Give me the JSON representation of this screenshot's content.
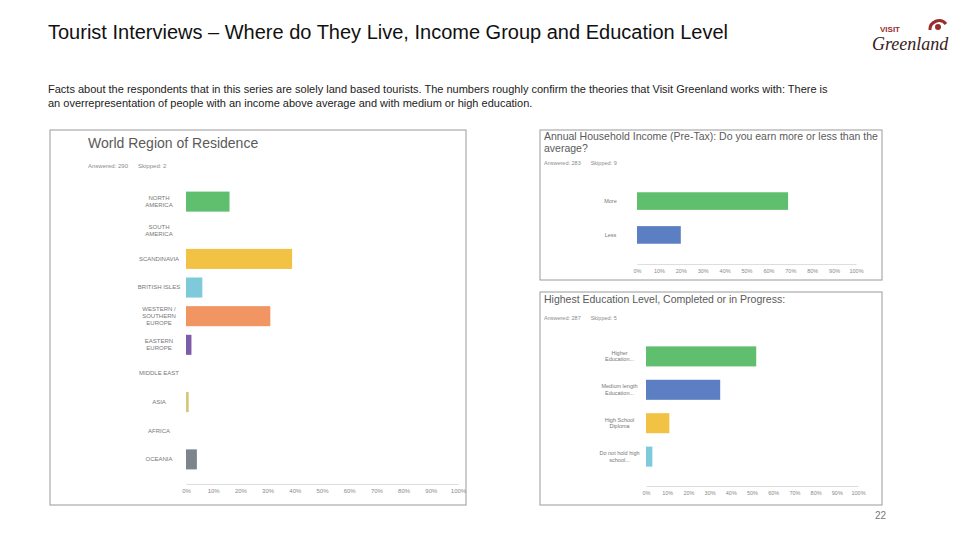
{
  "title": "Tourist Interviews – Where do They Live, Income Group and Education Level",
  "description": "Facts about the respondents that in this series are solely land based tourists. The numbers roughly confirm the theories that Visit Greenland works with: There is an overrepresentation of people with an income above average and with medium or high education.",
  "logo": {
    "top": "VISIT",
    "bottom": "Greenland"
  },
  "page_number": "22",
  "chart_data": [
    {
      "type": "bar",
      "orientation": "horizontal",
      "title": "World Region of Residence",
      "annotations": [
        "Answered: 290",
        "Skipped: 2"
      ],
      "categories": [
        "NORTH AMERICA",
        "SOUTH AMERICA",
        "SCANDINAVIA",
        "BRITISH ISLES",
        "WESTERN / SOUTHERN EUROPE",
        "EASTERN EUROPE",
        "MIDDLE EAST",
        "ASIA",
        "AFRICA",
        "OCEANIA"
      ],
      "values": [
        16,
        0,
        39,
        6,
        31,
        2,
        0,
        1,
        0,
        4
      ],
      "colors": [
        "#5fbf6f",
        "#e9655a",
        "#f2c244",
        "#7ecadb",
        "#f19563",
        "#7b5ea7",
        "#9aa0a6",
        "#d7c77a",
        "#b9a0d2",
        "#7e848b"
      ],
      "xlim": [
        0,
        100
      ],
      "xticks": [
        {
          "value": 0,
          "label": "0%"
        },
        {
          "value": 10,
          "label": "10%"
        },
        {
          "value": 20,
          "label": "20%"
        },
        {
          "value": 30,
          "label": "30%"
        },
        {
          "value": 40,
          "label": "40%"
        },
        {
          "value": 50,
          "label": "50%"
        },
        {
          "value": 60,
          "label": "60%"
        },
        {
          "value": 70,
          "label": "70%"
        },
        {
          "value": 80,
          "label": "80%"
        },
        {
          "value": 90,
          "label": "90%"
        },
        {
          "value": 100,
          "label": "100%"
        }
      ],
      "grid": false
    },
    {
      "type": "bar",
      "orientation": "horizontal",
      "title": "Annual Household Income (Pre-Tax): Do you earn more or less than the average?",
      "annotations": [
        "Answered: 283",
        "Skipped: 9"
      ],
      "categories": [
        "More",
        "Less"
      ],
      "values": [
        69,
        20
      ],
      "colors": [
        "#5fbf6f",
        "#5b7fc2"
      ],
      "xlim": [
        0,
        100
      ],
      "xticks": [
        {
          "value": 0,
          "label": "0%"
        },
        {
          "value": 10,
          "label": "10%"
        },
        {
          "value": 20,
          "label": "20%"
        },
        {
          "value": 30,
          "label": "30%"
        },
        {
          "value": 40,
          "label": "40%"
        },
        {
          "value": 50,
          "label": "50%"
        },
        {
          "value": 60,
          "label": "60%"
        },
        {
          "value": 70,
          "label": "70%"
        },
        {
          "value": 80,
          "label": "80%"
        },
        {
          "value": 90,
          "label": "90%"
        },
        {
          "value": 100,
          "label": "100%"
        }
      ],
      "grid": false
    },
    {
      "type": "bar",
      "orientation": "horizontal",
      "title": "Highest Education Level, Completed or in Progress:",
      "annotations": [
        "Answered: 287",
        "Skipped: 5"
      ],
      "categories": [
        "Higher Education...",
        "Medium length Education...",
        "High School Diploma",
        "Do not hold high school..."
      ],
      "values": [
        52,
        35,
        11,
        3
      ],
      "colors": [
        "#5fbf6f",
        "#5b7fc2",
        "#f2c244",
        "#7ecadb"
      ],
      "xlim": [
        0,
        100
      ],
      "xticks": [
        {
          "value": 0,
          "label": "0%"
        },
        {
          "value": 10,
          "label": "10%"
        },
        {
          "value": 20,
          "label": "20%"
        },
        {
          "value": 30,
          "label": "30%"
        },
        {
          "value": 40,
          "label": "40%"
        },
        {
          "value": 50,
          "label": "50%"
        },
        {
          "value": 60,
          "label": "60%"
        },
        {
          "value": 70,
          "label": "70%"
        },
        {
          "value": 80,
          "label": "80%"
        },
        {
          "value": 90,
          "label": "90%"
        },
        {
          "value": 100,
          "label": "100%"
        }
      ],
      "grid": false
    }
  ]
}
